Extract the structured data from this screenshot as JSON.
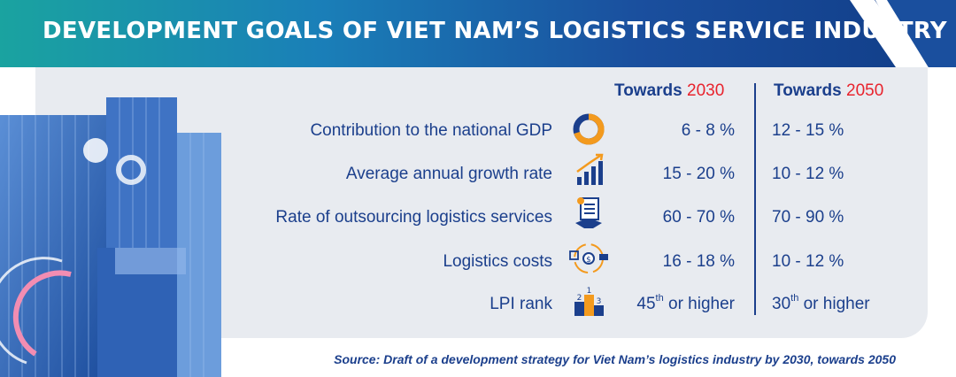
{
  "title": "DEVELOPMENT GOALS OF VIET NAM’S LOGISTICS SERVICE INDUSTRY",
  "columns": {
    "c2030": {
      "prefix": "Towards ",
      "year": "2030"
    },
    "c2050": {
      "prefix": "Towards ",
      "year": "2050"
    }
  },
  "rows": [
    {
      "label": "Contribution to the national GDP",
      "icon": "donut-chart-icon",
      "v2030": "6 - 8 %",
      "v2050": "12 - 15 %"
    },
    {
      "label": "Average annual growth rate",
      "icon": "growth-bars-icon",
      "v2030": "15 - 20 %",
      "v2050": "10 - 12 %"
    },
    {
      "label": "Rate of outsourcing logistics services",
      "icon": "handshake-contract-icon",
      "v2030": "60 - 70 %",
      "v2050": "70 - 90 %"
    },
    {
      "label": "Logistics costs",
      "icon": "logistics-cost-icon",
      "v2030": "16 - 18 %",
      "v2050": "10 - 12 %"
    },
    {
      "label": "LPI rank",
      "icon": "podium-icon",
      "v2030": {
        "num": "45",
        "sup": "th",
        "rest": " or higher"
      },
      "v2050": {
        "num": "30",
        "sup": "th",
        "rest": " or higher"
      }
    }
  ],
  "source": "Source: Draft of a development strategy for Viet Nam’s logistics industry by 2030, towards 2050",
  "colors": {
    "navy": "#1b3f8c",
    "red": "#e8232d",
    "orange": "#f39a1e",
    "panel": "#e8ebf0"
  }
}
